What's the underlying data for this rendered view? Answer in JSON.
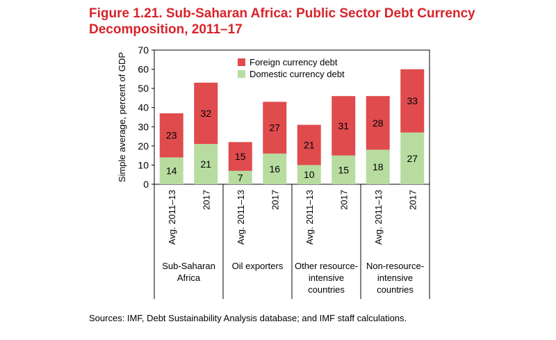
{
  "title": "Figure 1.21. Sub-Saharan Africa: Public Sector Debt Currency Decomposition, 2011–17",
  "source": "Sources: IMF, Debt Sustainability Analysis database; and IMF staff calculations.",
  "colors": {
    "title": "#d8232a",
    "foreign": "#e04b4d",
    "domestic": "#b8dca0"
  },
  "chart_data": {
    "type": "bar",
    "stacked": true,
    "ylabel": "Simple average, percent of GDP",
    "xlabel": "",
    "ylim": [
      0,
      70
    ],
    "yticks": [
      0,
      10,
      20,
      30,
      40,
      50,
      60,
      70
    ],
    "grid": false,
    "legend_position": "top-center",
    "categories": [
      "Avg. 2011–13",
      "2017",
      "Avg. 2011–13",
      "2017",
      "Avg. 2011–13",
      "2017",
      "Avg. 2011–13",
      "2017"
    ],
    "groups": [
      {
        "label_lines": [
          "Sub-Saharan",
          "Africa"
        ],
        "span": [
          0,
          1
        ]
      },
      {
        "label_lines": [
          "Oil exporters"
        ],
        "span": [
          2,
          3
        ]
      },
      {
        "label_lines": [
          "Other resource-",
          "intensive",
          "countries"
        ],
        "span": [
          4,
          5
        ]
      },
      {
        "label_lines": [
          "Non-resource-",
          "intensive",
          "countries"
        ],
        "span": [
          6,
          7
        ]
      }
    ],
    "series": [
      {
        "name": "Domestic currency debt",
        "color": "#b8dca0",
        "values": [
          14,
          21,
          7,
          16,
          10,
          15,
          18,
          27
        ]
      },
      {
        "name": "Foreign currency debt",
        "color": "#e04b4d",
        "values": [
          23,
          32,
          15,
          27,
          21,
          31,
          28,
          33
        ]
      }
    ],
    "legend": [
      "Foreign currency debt",
      "Domestic currency debt"
    ]
  }
}
